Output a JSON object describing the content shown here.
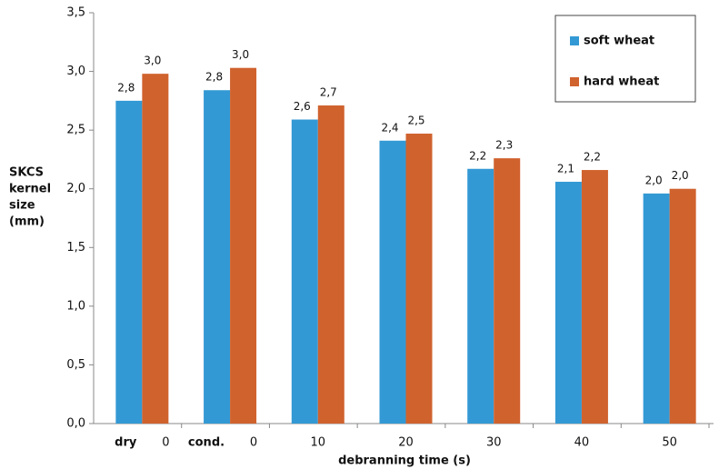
{
  "chart_data": {
    "type": "bar",
    "x_label": "debranning time (s)",
    "y_label_lines": [
      "SKCS",
      "kernel",
      "size",
      "(mm)"
    ],
    "categories": [
      "0",
      "0",
      "10",
      "20",
      "30",
      "40",
      "50"
    ],
    "group_labels": [
      "dry",
      "cond.",
      null,
      null,
      null,
      null,
      null
    ],
    "series": [
      {
        "name": "soft wheat",
        "color": "#3399d4",
        "values": [
          2.75,
          2.84,
          2.59,
          2.41,
          2.17,
          2.06,
          1.96
        ],
        "value_labels": [
          "2,8",
          "2,8",
          "2,6",
          "2,4",
          "2,2",
          "2,1",
          "2,0"
        ]
      },
      {
        "name": "hard wheat",
        "color": "#d0622e",
        "values": [
          2.98,
          3.03,
          2.71,
          2.47,
          2.26,
          2.16,
          2.0
        ],
        "value_labels": [
          "3,0",
          "3,0",
          "2,7",
          "2,5",
          "2,3",
          "2,2",
          "2,0"
        ]
      }
    ],
    "ylim": [
      0,
      3.5
    ],
    "yticks": [
      {
        "value": 0,
        "label": "0,0"
      },
      {
        "value": 0.5,
        "label": "0,5"
      },
      {
        "value": 1,
        "label": "1,0"
      },
      {
        "value": 1.5,
        "label": "1,5"
      },
      {
        "value": 2,
        "label": "2,0"
      },
      {
        "value": 2.5,
        "label": "2,5"
      },
      {
        "value": 3,
        "label": "3,0"
      },
      {
        "value": 3.5,
        "label": "3,5"
      }
    ],
    "grid": false,
    "legend": "top-right"
  }
}
